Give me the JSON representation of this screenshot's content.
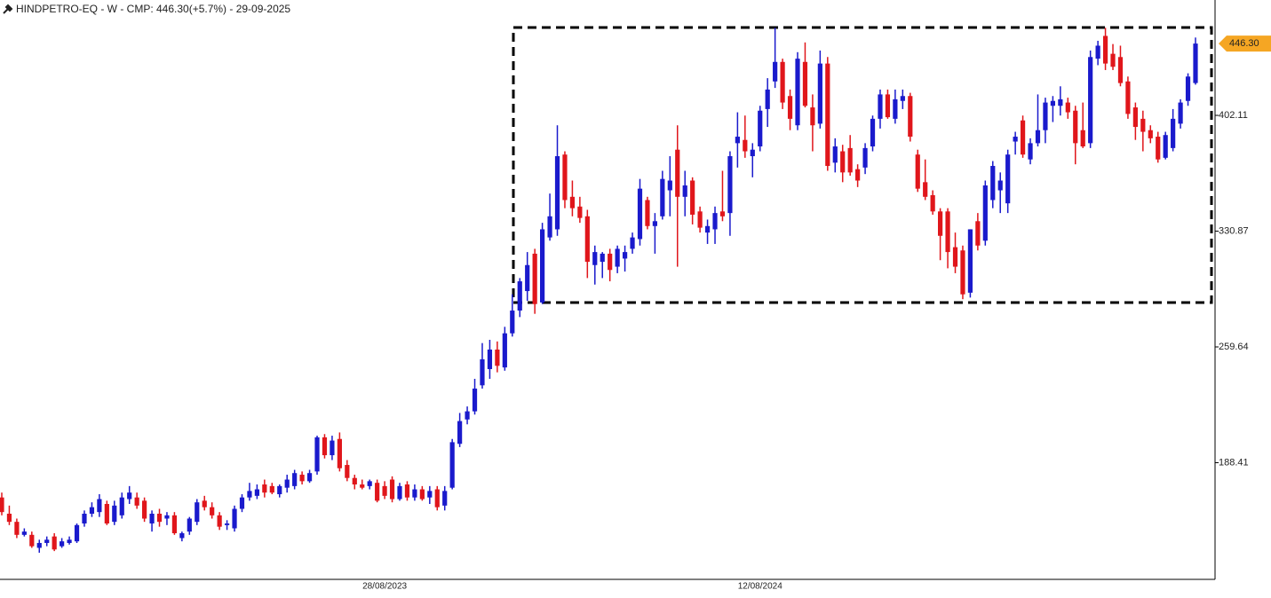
{
  "chart_data": {
    "type": "candlestick",
    "title": "HINDPETRO-EQ - W - CMP: 446.30(+5.7%) - 29-09-2025",
    "up_color": "#1a1acc",
    "down_color": "#e0161b",
    "ylim": [
      116.6,
      473.1
    ],
    "yticks": [
      188.41,
      259.64,
      330.87,
      402.11
    ],
    "last_price": {
      "value": 446.3,
      "label": "446.30"
    },
    "categories": [
      null,
      null,
      null,
      null,
      null,
      null,
      null,
      null,
      null,
      null,
      null,
      null,
      null,
      null,
      null,
      null,
      null,
      null,
      null,
      null,
      null,
      null,
      null,
      null,
      null,
      null,
      null,
      null,
      null,
      null,
      null,
      null,
      null,
      null,
      null,
      null,
      null,
      null,
      null,
      null,
      null,
      null,
      null,
      null,
      null,
      null,
      null,
      null,
      null,
      null,
      null,
      "28/08/2023",
      null,
      null,
      null,
      null,
      null,
      null,
      null,
      null,
      null,
      null,
      null,
      null,
      null,
      null,
      null,
      null,
      null,
      null,
      null,
      null,
      null,
      null,
      null,
      null,
      null,
      null,
      null,
      null,
      null,
      null,
      null,
      null,
      null,
      null,
      null,
      null,
      null,
      null,
      null,
      null,
      null,
      null,
      null,
      null,
      null,
      null,
      null,
      null,
      null,
      "12/08/2024",
      null,
      null,
      null,
      null,
      null,
      null,
      null,
      null,
      null,
      null,
      null,
      null,
      null,
      null,
      null,
      null,
      null,
      null,
      null,
      null,
      null,
      null,
      null,
      null,
      null,
      null,
      null,
      null,
      null,
      null,
      null,
      null,
      null,
      null,
      null,
      null,
      null,
      null,
      null,
      null,
      null,
      null,
      null,
      null,
      null,
      null,
      null,
      null,
      null,
      null,
      null,
      null,
      null,
      null,
      null,
      null,
      null,
      null
    ],
    "open": [
      167,
      157,
      152,
      144,
      144,
      136,
      139,
      143,
      137,
      139,
      140,
      151,
      157,
      158,
      163,
      152,
      156,
      166,
      167,
      165,
      151,
      157,
      154,
      156,
      142,
      146,
      152,
      165,
      161,
      156,
      150,
      148,
      160,
      167,
      168,
      175,
      174,
      169,
      173,
      174,
      181,
      177,
      183,
      204,
      193,
      203,
      187,
      179,
      175,
      174,
      176,
      174,
      178,
      166,
      175,
      167,
      172,
      167,
      172,
      162,
      173,
      200,
      215,
      220,
      236,
      246,
      258,
      247,
      268,
      282,
      294,
      317,
      287,
      327,
      332,
      378,
      352,
      346,
      340,
      310,
      312,
      317,
      309,
      314,
      320,
      326,
      350,
      334,
      340,
      356,
      381,
      352,
      362,
      343,
      330,
      332,
      343,
      342,
      385,
      387,
      377,
      383,
      406,
      423,
      435,
      414,
      396,
      435,
      407,
      397,
      434,
      373,
      380,
      382,
      369,
      370,
      383,
      400,
      415,
      400,
      411,
      414,
      378,
      361,
      353,
      343,
      343,
      321,
      319,
      293,
      337,
      325,
      350,
      356,
      348,
      386,
      399,
      375,
      385,
      393,
      408,
      408,
      410,
      405,
      393,
      385,
      437,
      451,
      440,
      438,
      423,
      407,
      400,
      393,
      389,
      376,
      382,
      397,
      411,
      422
    ],
    "high": [
      170,
      162,
      154,
      148,
      146,
      141,
      143,
      145,
      142,
      143,
      151,
      159,
      164,
      169,
      165,
      165,
      170,
      174,
      170,
      167,
      159,
      160,
      158,
      158,
      146,
      155,
      166,
      168,
      164,
      158,
      153,
      162,
      169,
      176,
      175,
      178,
      176,
      175,
      181,
      184,
      183,
      184,
      205,
      206,
      205,
      207,
      190,
      181,
      178,
      178,
      178,
      177,
      180,
      176,
      177,
      175,
      174,
      174,
      174,
      174,
      203,
      219,
      223,
      240,
      262,
      264,
      263,
      272,
      292,
      302,
      318,
      320,
      336,
      354,
      396,
      380,
      362,
      352,
      344,
      322,
      318,
      320,
      322,
      322,
      330,
      363,
      352,
      342,
      368,
      377,
      396,
      368,
      364,
      346,
      338,
      346,
      368,
      380,
      404,
      402,
      385,
      408,
      425,
      456,
      437,
      418,
      441,
      447,
      415,
      442,
      438,
      388,
      384,
      390,
      372,
      385,
      402,
      418,
      418,
      418,
      418,
      416,
      381,
      375,
      356,
      345,
      345,
      330,
      322,
      332,
      342,
      362,
      374,
      367,
      381,
      392,
      402,
      388,
      415,
      413,
      414,
      420,
      413,
      408,
      410,
      442,
      448,
      456,
      446,
      445,
      426,
      410,
      405,
      396,
      392,
      392,
      406,
      412,
      428,
      450
    ],
    "low": [
      156,
      150,
      142,
      143,
      136,
      133,
      137,
      134,
      136,
      138,
      139,
      149,
      155,
      155,
      150,
      150,
      154,
      163,
      160,
      152,
      146,
      149,
      150,
      144,
      140,
      144,
      150,
      159,
      154,
      147,
      147,
      146,
      158,
      165,
      166,
      167,
      169,
      167,
      170,
      172,
      175,
      176,
      181,
      191,
      190,
      183,
      177,
      172,
      172,
      172,
      164,
      166,
      164,
      165,
      165,
      165,
      165,
      163,
      159,
      159,
      172,
      198,
      212,
      218,
      234,
      240,
      244,
      245,
      266,
      278,
      288,
      280,
      286,
      325,
      328,
      345,
      340,
      336,
      302,
      298,
      302,
      300,
      305,
      306,
      317,
      322,
      332,
      317,
      338,
      340,
      309,
      340,
      335,
      330,
      323,
      323,
      337,
      328,
      370,
      376,
      364,
      380,
      395,
      419,
      406,
      393,
      393,
      407,
      380,
      394,
      368,
      367,
      361,
      365,
      358,
      366,
      380,
      394,
      400,
      397,
      406,
      386,
      355,
      350,
      341,
      313,
      308,
      305,
      289,
      290,
      319,
      322,
      345,
      342,
      342,
      378,
      376,
      372,
      383,
      385,
      398,
      402,
      400,
      372,
      382,
      382,
      433,
      430,
      430,
      420,
      400,
      387,
      380,
      385,
      373,
      375,
      380,
      394,
      408,
      421
    ],
    "close": [
      158,
      152,
      144,
      146,
      137,
      139,
      141,
      135,
      140,
      141,
      150,
      157,
      161,
      166,
      151,
      162,
      167,
      170,
      162,
      154,
      157,
      152,
      156,
      145,
      145,
      154,
      164,
      161,
      156,
      149,
      151,
      160,
      167,
      171,
      172,
      170,
      170,
      174,
      178,
      182,
      177,
      182,
      204,
      193,
      202,
      185,
      179,
      175,
      173,
      177,
      165,
      168,
      166,
      174,
      167,
      172,
      166,
      171,
      161,
      171,
      201,
      214,
      220,
      234,
      252,
      258,
      248,
      268,
      282,
      300,
      310,
      286,
      332,
      340,
      377,
      350,
      345,
      339,
      312,
      318,
      317,
      307,
      320,
      318,
      327,
      357,
      334,
      337,
      363,
      362,
      352,
      359,
      341,
      333,
      334,
      342,
      340,
      377,
      389,
      380,
      381,
      405,
      418,
      435,
      410,
      400,
      437,
      408,
      396,
      434,
      371,
      383,
      367,
      367,
      362,
      382,
      400,
      415,
      401,
      412,
      414,
      389,
      357,
      352,
      343,
      328,
      318,
      309,
      292,
      332,
      322,
      359,
      371,
      362,
      378,
      389,
      378,
      385,
      393,
      410,
      411,
      412,
      404,
      385,
      383,
      438,
      445,
      434,
      432,
      422,
      403,
      395,
      392,
      388,
      375,
      390,
      400,
      410,
      426,
      446.3
    ]
  }
}
